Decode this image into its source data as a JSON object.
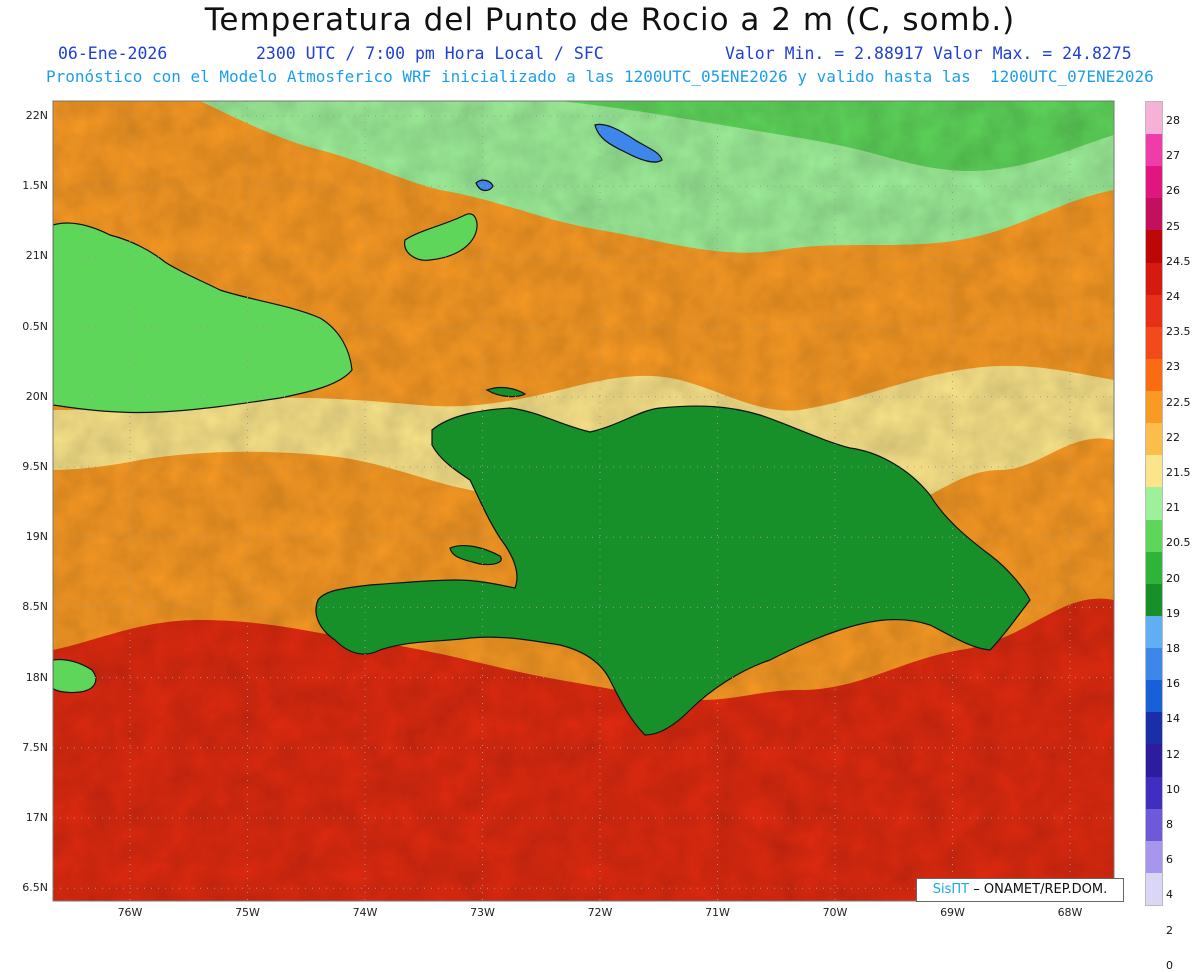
{
  "header": {
    "title": "Temperatura del Punto de Rocio a 2 m (C, somb.)",
    "date": "06-Ene-2026",
    "time": "2300 UTC / 7:00 pm Hora Local / SFC",
    "min_label": "Valor Min. = 2.88917",
    "max_label": "Valor Max. = 24.8275",
    "model_info": "Pronóstico con el Modelo Atmosferico WRF inicializado a las 1200UTC_05ENE2026 y valido hasta las  1200UTC_07ENE2026"
  },
  "axes": {
    "lat_labels": [
      "22N",
      "1.5N",
      "21N",
      "0.5N",
      "20N",
      "9.5N",
      "19N",
      "8.5N",
      "18N",
      "7.5N",
      "17N",
      "6.5N"
    ],
    "lon_labels": [
      "76W",
      "75W",
      "74W",
      "73W",
      "72W",
      "71W",
      "70W",
      "69W",
      "68W"
    ]
  },
  "colorbar": {
    "labels": [
      "28",
      "27",
      "26",
      "25",
      "24.5",
      "24",
      "23.5",
      "23",
      "22.5",
      "22",
      "21.5",
      "21",
      "20.5",
      "20",
      "19",
      "18",
      "16",
      "14",
      "12",
      "10",
      "8",
      "6",
      "4",
      "2",
      "0"
    ],
    "colors": [
      "#f7b0d6",
      "#f03ca8",
      "#e0167e",
      "#c2105e",
      "#bd0606",
      "#d71a10",
      "#e6301a",
      "#f24a1a",
      "#fb6b12",
      "#f99a24",
      "#fbbe4a",
      "#fbe58a",
      "#9ef09a",
      "#5ed65a",
      "#2fb43a",
      "#17902a",
      "#62aef4",
      "#3d86ea",
      "#1860d8",
      "#1a2ea8",
      "#2c1c9e",
      "#3f2ec0",
      "#6e5ad8",
      "#a896ee",
      "#d9d6f8"
    ]
  },
  "credit": {
    "brand": "SisПT",
    "text": "– ONAMET/REP.DOM."
  },
  "map_colors": {
    "sea_hot": "#e02a10",
    "sea_orange": "#f99a24",
    "sea_yellow": "#fbe58a",
    "light_green": "#9ef09a",
    "green": "#5ed65a",
    "dark_green": "#17902a",
    "land_blue": "#3d86ea",
    "deep_blue": "#2c1c9e"
  }
}
